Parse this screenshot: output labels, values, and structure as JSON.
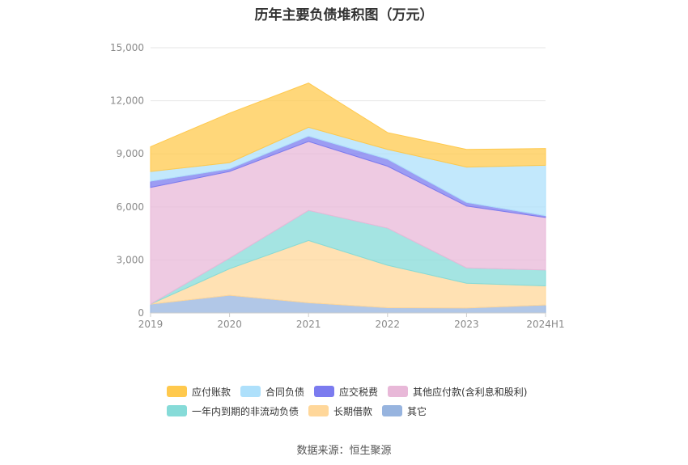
{
  "chart_data": {
    "type": "area",
    "stacked": true,
    "title": "历年主要负债堆积图（万元）",
    "xlabel": "",
    "ylabel": "",
    "x": [
      "2019",
      "2020",
      "2021",
      "2022",
      "2023",
      "2024H1"
    ],
    "ylim": [
      0,
      15000
    ],
    "yticks": [
      0,
      3000,
      6000,
      9000,
      12000,
      15000
    ],
    "ytick_labels": [
      "0",
      "3,000",
      "6,000",
      "9,000",
      "12,000",
      "15,000"
    ],
    "grid": true,
    "legend_position": "bottom",
    "series": [
      {
        "name": "其它",
        "color": "#97b4df",
        "values": [
          500,
          1000,
          580,
          300,
          280,
          450
        ]
      },
      {
        "name": "长期借款",
        "color": "#ffd79a",
        "values": [
          0,
          1500,
          3520,
          2400,
          1400,
          1080
        ]
      },
      {
        "name": "一年内到期的非流动负债",
        "color": "#86dbd8",
        "values": [
          0,
          600,
          1700,
          2100,
          870,
          900
        ]
      },
      {
        "name": "其他应付款(含利息和股利)",
        "color": "#e8b8d8",
        "values": [
          6600,
          4900,
          3900,
          3500,
          3500,
          2970
        ]
      },
      {
        "name": "应交税费",
        "color": "#7b7bef",
        "values": [
          350,
          150,
          300,
          400,
          200,
          100
        ]
      },
      {
        "name": "合同负债",
        "color": "#aee0fb",
        "values": [
          550,
          350,
          500,
          550,
          2000,
          2850
        ]
      },
      {
        "name": "应付账款",
        "color": "#ffc94d",
        "values": [
          1400,
          2800,
          2500,
          950,
          1000,
          950
        ]
      }
    ],
    "legend_rows": [
      [
        "应付账款",
        "合同负债",
        "应交税费",
        "其他应付款(含利息和股利)"
      ],
      [
        "一年内到期的非流动负债",
        "长期借款",
        "其它"
      ]
    ],
    "source": "数据来源：恒生聚源"
  }
}
